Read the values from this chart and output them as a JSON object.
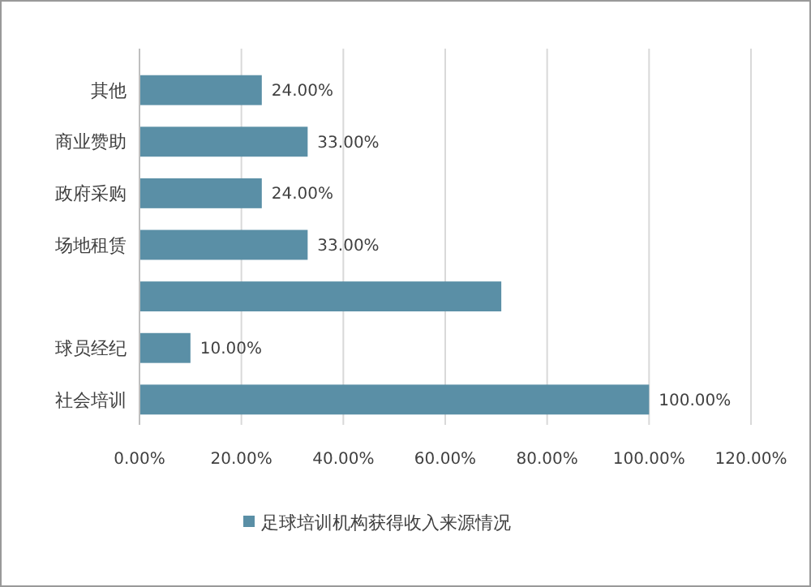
{
  "chart_data": {
    "type": "bar",
    "orientation": "horizontal",
    "categories": [
      "其他",
      "商业赞助",
      "政府采购",
      "场地租赁",
      null,
      "球员经纪",
      "社会培训"
    ],
    "series": [
      {
        "name": "足球培训机构获得收入来源情况",
        "color": "#5a8fa6",
        "values": [
          24,
          33,
          24,
          33,
          71,
          10,
          100
        ]
      }
    ],
    "value_labels": [
      "24.00%",
      "33.00%",
      "24.00%",
      "33.00%",
      null,
      "10.00%",
      "100.00%"
    ],
    "xlim": [
      0,
      120
    ],
    "xticks": [
      {
        "value": 0,
        "label": "0.00%"
      },
      {
        "value": 20,
        "label": "20.00%"
      },
      {
        "value": 40,
        "label": "40.00%"
      },
      {
        "value": 60,
        "label": "60.00%"
      },
      {
        "value": 80,
        "label": "80.00%"
      },
      {
        "value": 100,
        "label": "100.00%"
      },
      {
        "value": 120,
        "label": "120.00%"
      }
    ],
    "grid": "x",
    "legend": "bottom"
  }
}
